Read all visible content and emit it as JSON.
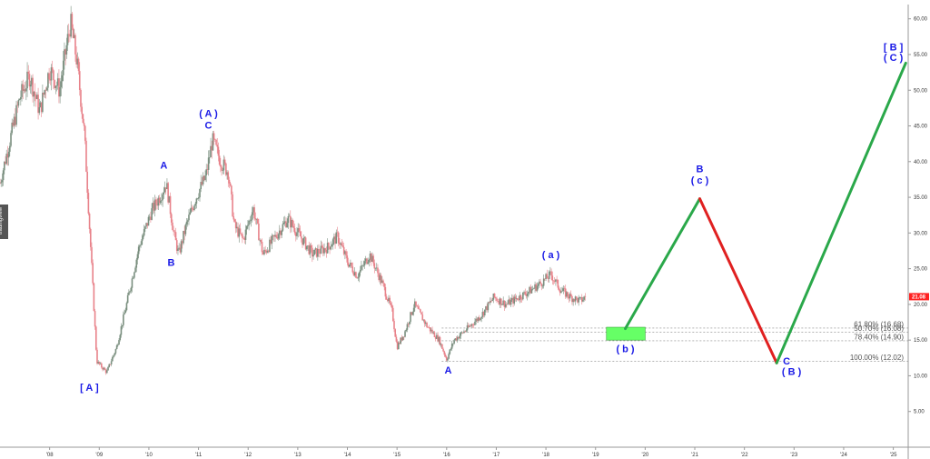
{
  "chart_data": {
    "type": "candlestick",
    "watermark": "tradingview",
    "current_price": {
      "value": 21.08,
      "label": "21.08",
      "color": "#ff2222"
    },
    "y_axis": {
      "min": 0,
      "max": 62,
      "ticks": [
        5,
        10,
        15,
        20,
        25,
        30,
        35,
        40,
        45,
        50,
        55,
        60
      ],
      "tick_labels": [
        "5.00",
        "10.00",
        "15.00",
        "20.00",
        "25.00",
        "30.00",
        "35.00",
        "40.00",
        "45.00",
        "50.00",
        "55.00",
        "60.00"
      ]
    },
    "x_axis": {
      "min": 2007.0,
      "max": 2025.3,
      "ticks": [
        2008,
        2009,
        2010,
        2011,
        2012,
        2013,
        2014,
        2015,
        2016,
        2017,
        2018,
        2019,
        2020,
        2021,
        2022,
        2023,
        2024,
        2025
      ],
      "tick_labels": [
        "'08",
        "'09",
        "'10",
        "'11",
        "'12",
        "'13",
        "'14",
        "'15",
        "'16",
        "'17",
        "'18",
        "'19",
        "'20",
        "'21",
        "'22",
        "'23",
        "'24",
        "'25"
      ]
    },
    "price_path": [
      [
        2007.0,
        37
      ],
      [
        2007.2,
        43
      ],
      [
        2007.4,
        49
      ],
      [
        2007.6,
        52
      ],
      [
        2007.8,
        47
      ],
      [
        2008.0,
        53
      ],
      [
        2008.2,
        50
      ],
      [
        2008.42,
        59.5
      ],
      [
        2008.55,
        54
      ],
      [
        2008.7,
        44
      ],
      [
        2008.85,
        25
      ],
      [
        2008.95,
        12
      ],
      [
        2009.15,
        10.5
      ],
      [
        2009.35,
        14
      ],
      [
        2009.55,
        20
      ],
      [
        2009.8,
        28
      ],
      [
        2010.05,
        33
      ],
      [
        2010.25,
        35.5
      ],
      [
        2010.35,
        37
      ],
      [
        2010.5,
        30
      ],
      [
        2010.6,
        27
      ],
      [
        2010.75,
        31
      ],
      [
        2010.95,
        35
      ],
      [
        2011.15,
        38
      ],
      [
        2011.28,
        43
      ],
      [
        2011.45,
        40
      ],
      [
        2011.6,
        38.5
      ],
      [
        2011.72,
        31
      ],
      [
        2011.9,
        29
      ],
      [
        2012.1,
        33.5
      ],
      [
        2012.3,
        27
      ],
      [
        2012.5,
        29
      ],
      [
        2012.8,
        32
      ],
      [
        2013.0,
        30
      ],
      [
        2013.3,
        27
      ],
      [
        2013.6,
        28
      ],
      [
        2013.8,
        29.5
      ],
      [
        2014.0,
        26
      ],
      [
        2014.2,
        24
      ],
      [
        2014.45,
        27
      ],
      [
        2014.7,
        23
      ],
      [
        2014.9,
        19
      ],
      [
        2015.0,
        14
      ],
      [
        2015.15,
        16
      ],
      [
        2015.35,
        20
      ],
      [
        2015.6,
        17
      ],
      [
        2015.85,
        15
      ],
      [
        2016.0,
        12.3
      ],
      [
        2016.15,
        15
      ],
      [
        2016.4,
        16.5
      ],
      [
        2016.7,
        18.5
      ],
      [
        2016.95,
        21
      ],
      [
        2017.2,
        20
      ],
      [
        2017.45,
        21
      ],
      [
        2017.7,
        22
      ],
      [
        2017.9,
        23
      ],
      [
        2018.1,
        24.2
      ],
      [
        2018.3,
        22
      ],
      [
        2018.5,
        21
      ],
      [
        2018.7,
        20.5
      ],
      [
        2018.8,
        21.08
      ]
    ],
    "projection": [
      {
        "from": [
          2019.6,
          16.6
        ],
        "to": [
          2021.1,
          34.8
        ],
        "direction": "up",
        "color": "#2aa84a"
      },
      {
        "from": [
          2021.1,
          34.8
        ],
        "to": [
          2022.65,
          11.8
        ],
        "direction": "down",
        "color": "#e02020"
      },
      {
        "from": [
          2022.65,
          11.8
        ],
        "to": [
          2025.25,
          53.8
        ],
        "direction": "up",
        "color": "#2aa84a"
      }
    ],
    "target_zone": {
      "x0": 2019.22,
      "x1": 2020.0,
      "y0": 15.0,
      "y1": 16.8,
      "color": "#66ff66"
    },
    "fib_levels": [
      {
        "label": "61.80% (16.68)",
        "value": 16.68
      },
      {
        "label": "50.70% (16.08)",
        "value": 16.08
      },
      {
        "label": "78.40% (14.90)",
        "value": 14.9
      },
      {
        "label": "100.00% (12.02)",
        "value": 12.02
      }
    ],
    "wave_labels": [
      {
        "text": "[ A ]",
        "x": 2008.8,
        "y": 7.9
      },
      {
        "text": "A",
        "x": 2010.3,
        "y": 39.0
      },
      {
        "text": "B",
        "x": 2010.45,
        "y": 25.4
      },
      {
        "text": "( A )",
        "x": 2011.2,
        "y": 46.3
      },
      {
        "text": "C",
        "x": 2011.2,
        "y": 44.6
      },
      {
        "text": "A",
        "x": 2016.03,
        "y": 10.3
      },
      {
        "text": "( a )",
        "x": 2018.1,
        "y": 26.5
      },
      {
        "text": "( b )",
        "x": 2019.6,
        "y": 13.3
      },
      {
        "text": "B",
        "x": 2021.1,
        "y": 38.5
      },
      {
        "text": "( c )",
        "x": 2021.1,
        "y": 36.9
      },
      {
        "text": "C",
        "x": 2022.85,
        "y": 11.6
      },
      {
        "text": "( B )",
        "x": 2022.95,
        "y": 10.1
      },
      {
        "text": "[ B ]",
        "x": 2025.0,
        "y": 55.6
      },
      {
        "text": "( C )",
        "x": 2025.0,
        "y": 54.1
      }
    ]
  }
}
